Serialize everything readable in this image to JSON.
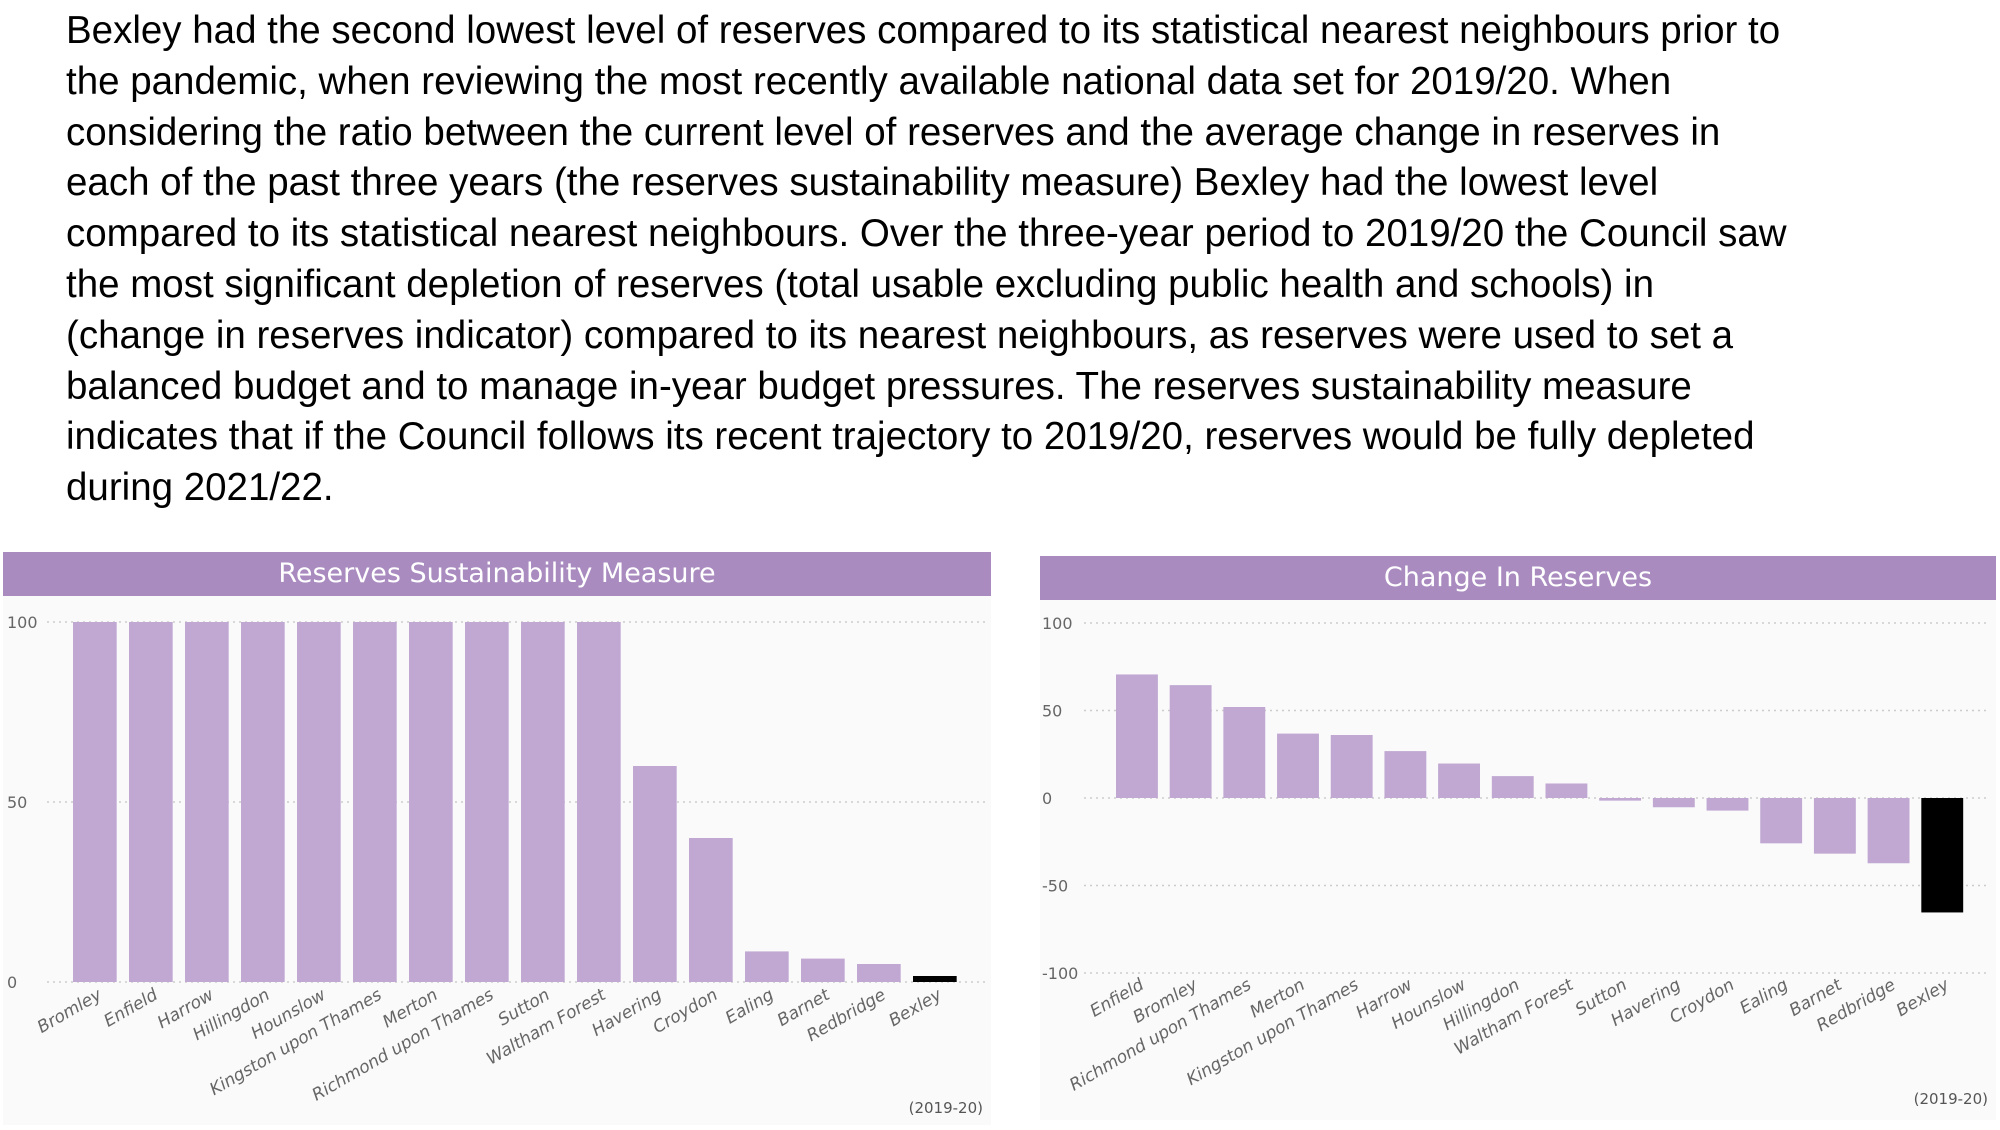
{
  "paragraph_lines": [
    "Bexley had the second lowest level of reserves compared to its statistical nearest neighbours prior to",
    "the pandemic, when reviewing the most recently available national data set for 2019/20.  When",
    "considering the ratio between the current level of reserves and the average change in reserves in",
    "each of the past three years (the reserves sustainability measure) Bexley had the lowest level",
    "compared to its statistical nearest neighbours. Over the three-year period to 2019/20 the Council saw",
    "the most significant depletion of reserves (total usable excluding public health and schools) in",
    "(change in reserves indicator) compared to its nearest neighbours, as reserves were used to set a",
    "balanced budget and to manage in-year budget pressures.  The reserves sustainability measure",
    "indicates that if the Council follows its recent trajectory to 2019/20, reserves would be fully depleted",
    "during 2021/22."
  ],
  "colors": {
    "bar": "#c0a8d2",
    "highlight": "#000000",
    "title_bar": "#a98bc0"
  },
  "chart_data": [
    {
      "type": "bar",
      "title": "Reserves Sustainability Measure",
      "footnote": "(2019-20)",
      "categories": [
        "Bromley",
        "Enfield",
        "Harrow",
        "Hillingdon",
        "Hounslow",
        "Kingston upon Thames",
        "Merton",
        "Richmond upon Thames",
        "Sutton",
        "Waltham Forest",
        "Havering",
        "Croydon",
        "Ealing",
        "Barnet",
        "Redbridge",
        "Bexley"
      ],
      "values": [
        100,
        100,
        100,
        100,
        100,
        100,
        100,
        100,
        100,
        100,
        60,
        40,
        8.5,
        6.5,
        5,
        1
      ],
      "highlight": "Bexley",
      "ylim": [
        0,
        100
      ],
      "yticks": [
        0,
        50,
        100
      ],
      "grid": true
    },
    {
      "type": "bar",
      "title": "Change In Reserves",
      "footnote": "(2019-20)",
      "categories": [
        "Enfield",
        "Bromley",
        "Richmond upon Thames",
        "Merton",
        "Kingston upon Thames",
        "Harrow",
        "Hounslow",
        "Hillingdon",
        "Waltham Forest",
        "Sutton",
        "Havering",
        "Croydon",
        "Ealing",
        "Barnet",
        "Redbridge",
        "Bexley"
      ],
      "values": [
        70.6,
        64.5,
        52,
        36.8,
        36,
        26.8,
        19.7,
        12.5,
        8.3,
        -1.5,
        -5.3,
        -7.2,
        -25.9,
        -31.8,
        -37.3,
        -65.4
      ],
      "highlight": "Bexley",
      "ylim": [
        -100,
        100
      ],
      "yticks": [
        -100,
        -50,
        0,
        50,
        100
      ],
      "grid": true
    }
  ]
}
